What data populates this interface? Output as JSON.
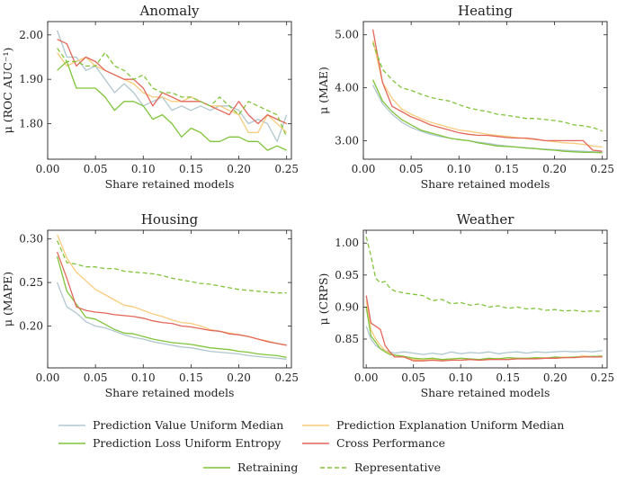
{
  "chart_data": [
    {
      "type": "line",
      "title": "Anomaly",
      "xlabel": "Share retained models",
      "ylabel": "μ (ROC AUC⁻¹)",
      "xlim": [
        0,
        0.255
      ],
      "ylim": [
        1.72,
        2.03
      ],
      "xticks": [
        0.0,
        0.05,
        0.1,
        0.15,
        0.2,
        0.25
      ],
      "xtick_labels": [
        "0.00",
        "0.05",
        "0.10",
        "0.15",
        "0.20",
        "0.25"
      ],
      "yticks": [
        1.8,
        1.9,
        2.0
      ],
      "ytick_labels": [
        "1.80",
        "1.90",
        "2.00"
      ],
      "x": [
        0.01,
        0.02,
        0.03,
        0.04,
        0.05,
        0.06,
        0.07,
        0.08,
        0.09,
        0.1,
        0.11,
        0.12,
        0.13,
        0.14,
        0.15,
        0.16,
        0.17,
        0.18,
        0.19,
        0.2,
        0.21,
        0.22,
        0.23,
        0.24,
        0.25
      ],
      "series": [
        {
          "key": "pvum",
          "values": [
            2.01,
            1.95,
            1.95,
            1.92,
            1.93,
            1.9,
            1.87,
            1.89,
            1.87,
            1.84,
            1.85,
            1.86,
            1.83,
            1.84,
            1.83,
            1.84,
            1.83,
            1.84,
            1.84,
            1.83,
            1.8,
            1.81,
            1.8,
            1.76,
            1.82
          ]
        },
        {
          "key": "plue",
          "values": [
            1.92,
            1.94,
            1.88,
            1.88,
            1.88,
            1.86,
            1.83,
            1.85,
            1.85,
            1.84,
            1.81,
            1.82,
            1.8,
            1.77,
            1.79,
            1.78,
            1.76,
            1.76,
            1.77,
            1.77,
            1.76,
            1.76,
            1.74,
            1.75,
            1.74
          ]
        },
        {
          "key": "peum",
          "values": [
            1.96,
            1.93,
            1.94,
            1.95,
            1.93,
            1.92,
            1.91,
            1.9,
            1.89,
            1.87,
            1.86,
            1.86,
            1.85,
            1.85,
            1.86,
            1.85,
            1.84,
            1.84,
            1.83,
            1.82,
            1.78,
            1.78,
            1.82,
            1.8,
            1.78
          ]
        },
        {
          "key": "cp",
          "values": [
            1.99,
            1.98,
            1.93,
            1.95,
            1.94,
            1.92,
            1.91,
            1.9,
            1.9,
            1.88,
            1.84,
            1.87,
            1.86,
            1.85,
            1.85,
            1.85,
            1.84,
            1.83,
            1.82,
            1.85,
            1.82,
            1.8,
            1.82,
            1.81,
            1.8
          ]
        },
        {
          "key": "rep",
          "values": [
            1.97,
            1.94,
            1.94,
            1.93,
            1.93,
            1.96,
            1.93,
            1.92,
            1.9,
            1.91,
            1.88,
            1.87,
            1.87,
            1.86,
            1.86,
            1.85,
            1.84,
            1.86,
            1.84,
            1.82,
            1.85,
            1.84,
            1.83,
            1.82,
            1.77
          ]
        }
      ]
    },
    {
      "type": "line",
      "title": "Heating",
      "xlabel": "Share retained models",
      "ylabel": "μ (MAE)",
      "xlim": [
        0,
        0.255
      ],
      "ylim": [
        2.65,
        5.25
      ],
      "xticks": [
        0.0,
        0.05,
        0.1,
        0.15,
        0.2,
        0.25
      ],
      "xtick_labels": [
        "0.00",
        "0.05",
        "0.10",
        "0.15",
        "0.20",
        "0.25"
      ],
      "yticks": [
        3.0,
        4.0,
        5.0
      ],
      "ytick_labels": [
        "3.00",
        "4.00",
        "5.00"
      ],
      "x": [
        0.01,
        0.02,
        0.03,
        0.04,
        0.05,
        0.06,
        0.07,
        0.08,
        0.09,
        0.1,
        0.11,
        0.12,
        0.13,
        0.14,
        0.15,
        0.16,
        0.17,
        0.18,
        0.19,
        0.2,
        0.21,
        0.22,
        0.23,
        0.24,
        0.25
      ],
      "series": [
        {
          "key": "pvum",
          "values": [
            4.05,
            3.7,
            3.5,
            3.35,
            3.25,
            3.18,
            3.12,
            3.08,
            3.05,
            3.02,
            3.0,
            2.97,
            2.95,
            2.92,
            2.9,
            2.88,
            2.87,
            2.85,
            2.84,
            2.83,
            2.82,
            2.81,
            2.8,
            2.79,
            2.78
          ]
        },
        {
          "key": "plue",
          "values": [
            4.15,
            3.75,
            3.55,
            3.4,
            3.3,
            3.2,
            3.15,
            3.1,
            3.05,
            3.02,
            3.0,
            2.96,
            2.93,
            2.9,
            2.89,
            2.88,
            2.86,
            2.85,
            2.83,
            2.82,
            2.8,
            2.79,
            2.78,
            2.78,
            2.77
          ]
        },
        {
          "key": "peum",
          "values": [
            4.9,
            4.1,
            3.8,
            3.6,
            3.5,
            3.42,
            3.35,
            3.3,
            3.25,
            3.2,
            3.18,
            3.15,
            3.12,
            3.1,
            3.08,
            3.06,
            3.04,
            3.02,
            3.0,
            2.98,
            2.96,
            2.95,
            2.93,
            2.9,
            2.88
          ]
        },
        {
          "key": "cp",
          "values": [
            5.1,
            4.1,
            3.65,
            3.55,
            3.45,
            3.38,
            3.3,
            3.25,
            3.2,
            3.15,
            3.12,
            3.1,
            3.1,
            3.08,
            3.06,
            3.05,
            3.05,
            3.03,
            3.0,
            3.0,
            3.0,
            3.0,
            3.0,
            2.82,
            2.8
          ]
        },
        {
          "key": "rep",
          "values": [
            4.85,
            4.35,
            4.15,
            4.0,
            3.95,
            3.88,
            3.82,
            3.78,
            3.75,
            3.68,
            3.62,
            3.58,
            3.55,
            3.5,
            3.48,
            3.45,
            3.42,
            3.42,
            3.4,
            3.38,
            3.35,
            3.3,
            3.28,
            3.25,
            3.18
          ]
        }
      ]
    },
    {
      "type": "line",
      "title": "Housing",
      "xlabel": "Share retained models",
      "ylabel": "μ (MAPE)",
      "xlim": [
        0,
        0.255
      ],
      "ylim": [
        0.152,
        0.31
      ],
      "xticks": [
        0.0,
        0.05,
        0.1,
        0.15,
        0.2,
        0.25
      ],
      "xtick_labels": [
        "0.00",
        "0.05",
        "0.10",
        "0.15",
        "0.20",
        "0.25"
      ],
      "yticks": [
        0.2,
        0.25,
        0.3
      ],
      "ytick_labels": [
        "0.20",
        "0.25",
        "0.30"
      ],
      "x": [
        0.01,
        0.02,
        0.03,
        0.04,
        0.05,
        0.06,
        0.07,
        0.08,
        0.09,
        0.1,
        0.11,
        0.12,
        0.13,
        0.14,
        0.15,
        0.16,
        0.17,
        0.18,
        0.19,
        0.2,
        0.21,
        0.22,
        0.23,
        0.24,
        0.25
      ],
      "series": [
        {
          "key": "pvum",
          "values": [
            0.25,
            0.222,
            0.215,
            0.205,
            0.2,
            0.198,
            0.194,
            0.19,
            0.187,
            0.185,
            0.182,
            0.18,
            0.178,
            0.176,
            0.175,
            0.173,
            0.171,
            0.17,
            0.169,
            0.168,
            0.166,
            0.165,
            0.164,
            0.163,
            0.162
          ]
        },
        {
          "key": "plue",
          "values": [
            0.28,
            0.24,
            0.225,
            0.21,
            0.208,
            0.202,
            0.196,
            0.192,
            0.191,
            0.188,
            0.185,
            0.183,
            0.181,
            0.18,
            0.179,
            0.177,
            0.175,
            0.174,
            0.173,
            0.171,
            0.17,
            0.168,
            0.167,
            0.166,
            0.164
          ]
        },
        {
          "key": "peum",
          "values": [
            0.305,
            0.278,
            0.262,
            0.252,
            0.242,
            0.236,
            0.23,
            0.224,
            0.222,
            0.218,
            0.214,
            0.211,
            0.207,
            0.204,
            0.203,
            0.2,
            0.196,
            0.194,
            0.192,
            0.19,
            0.188,
            0.185,
            0.183,
            0.18,
            0.178
          ]
        },
        {
          "key": "cp",
          "values": [
            0.285,
            0.255,
            0.222,
            0.218,
            0.216,
            0.215,
            0.213,
            0.212,
            0.211,
            0.209,
            0.206,
            0.204,
            0.203,
            0.2,
            0.199,
            0.197,
            0.195,
            0.194,
            0.191,
            0.19,
            0.188,
            0.185,
            0.182,
            0.18,
            0.178
          ]
        },
        {
          "key": "rep",
          "values": [
            0.298,
            0.273,
            0.271,
            0.268,
            0.268,
            0.266,
            0.266,
            0.263,
            0.262,
            0.261,
            0.26,
            0.258,
            0.255,
            0.253,
            0.251,
            0.249,
            0.248,
            0.246,
            0.244,
            0.242,
            0.241,
            0.24,
            0.239,
            0.238,
            0.238
          ]
        }
      ]
    },
    {
      "type": "line",
      "title": "Weather",
      "xlabel": "Share retained models",
      "ylabel": "μ (CRPS)",
      "xlim": [
        -0.003,
        0.255
      ],
      "ylim": [
        0.805,
        1.02
      ],
      "xticks": [
        0.0,
        0.05,
        0.1,
        0.15,
        0.2,
        0.25
      ],
      "xtick_labels": [
        "0.00",
        "0.05",
        "0.10",
        "0.15",
        "0.20",
        "0.25"
      ],
      "yticks": [
        0.85,
        0.9,
        0.95,
        1.0
      ],
      "ytick_labels": [
        "0.85",
        "0.90",
        "0.95",
        "1.00"
      ],
      "x": [
        0.0,
        0.005,
        0.01,
        0.015,
        0.02,
        0.025,
        0.03,
        0.04,
        0.05,
        0.06,
        0.07,
        0.08,
        0.09,
        0.1,
        0.11,
        0.12,
        0.13,
        0.14,
        0.15,
        0.16,
        0.17,
        0.18,
        0.19,
        0.2,
        0.21,
        0.22,
        0.23,
        0.24,
        0.25
      ],
      "series": [
        {
          "key": "pvum",
          "values": [
            0.87,
            0.85,
            0.84,
            0.835,
            0.832,
            0.83,
            0.828,
            0.83,
            0.828,
            0.826,
            0.828,
            0.826,
            0.83,
            0.827,
            0.829,
            0.828,
            0.83,
            0.827,
            0.829,
            0.83,
            0.828,
            0.83,
            0.829,
            0.83,
            0.831,
            0.83,
            0.831,
            0.83,
            0.832
          ]
        },
        {
          "key": "plue",
          "values": [
            0.9,
            0.855,
            0.845,
            0.835,
            0.83,
            0.826,
            0.825,
            0.823,
            0.82,
            0.819,
            0.82,
            0.818,
            0.819,
            0.82,
            0.819,
            0.818,
            0.82,
            0.819,
            0.821,
            0.82,
            0.82,
            0.821,
            0.82,
            0.822,
            0.821,
            0.822,
            0.822,
            0.823,
            0.823
          ]
        },
        {
          "key": "peum",
          "values": [
            0.91,
            0.865,
            0.85,
            0.84,
            0.832,
            0.828,
            0.825,
            0.822,
            0.818,
            0.817,
            0.818,
            0.816,
            0.818,
            0.817,
            0.818,
            0.817,
            0.818,
            0.82,
            0.818,
            0.82,
            0.819,
            0.82,
            0.821,
            0.82,
            0.822,
            0.821,
            0.824,
            0.822,
            0.824
          ]
        },
        {
          "key": "cp",
          "values": [
            0.918,
            0.875,
            0.87,
            0.865,
            0.84,
            0.83,
            0.822,
            0.822,
            0.816,
            0.816,
            0.817,
            0.816,
            0.817,
            0.817,
            0.818,
            0.817,
            0.818,
            0.818,
            0.818,
            0.819,
            0.819,
            0.819,
            0.82,
            0.82,
            0.821,
            0.821,
            0.822,
            0.822,
            0.822
          ]
        },
        {
          "key": "rep",
          "values": [
            1.01,
            0.98,
            0.945,
            0.938,
            0.94,
            0.93,
            0.925,
            0.922,
            0.92,
            0.918,
            0.91,
            0.912,
            0.905,
            0.907,
            0.903,
            0.905,
            0.9,
            0.902,
            0.898,
            0.9,
            0.897,
            0.898,
            0.895,
            0.896,
            0.894,
            0.895,
            0.893,
            0.894,
            0.893
          ]
        }
      ]
    }
  ],
  "legend": {
    "placement": "bottom",
    "entries": [
      {
        "key": "pvum",
        "label": "Prediction Value Uniform Median",
        "color": "#b0c7cf",
        "dash": "solid"
      },
      {
        "key": "plue",
        "label": "Prediction Loss Uniform Entropy",
        "color": "#80c43a",
        "dash": "solid"
      },
      {
        "key": "peum",
        "label": "Prediction Explanation Uniform Median",
        "color": "#f8cc7c",
        "dash": "solid"
      },
      {
        "key": "cp",
        "label": "Cross Performance",
        "color": "#e3675a",
        "dash": "solid"
      },
      {
        "key": "ret",
        "label": "Retraining",
        "color": "#80c43a",
        "dash": "solid"
      },
      {
        "key": "rep",
        "label": "Representative",
        "color": "#80c43a",
        "dash": "dashed"
      }
    ]
  }
}
